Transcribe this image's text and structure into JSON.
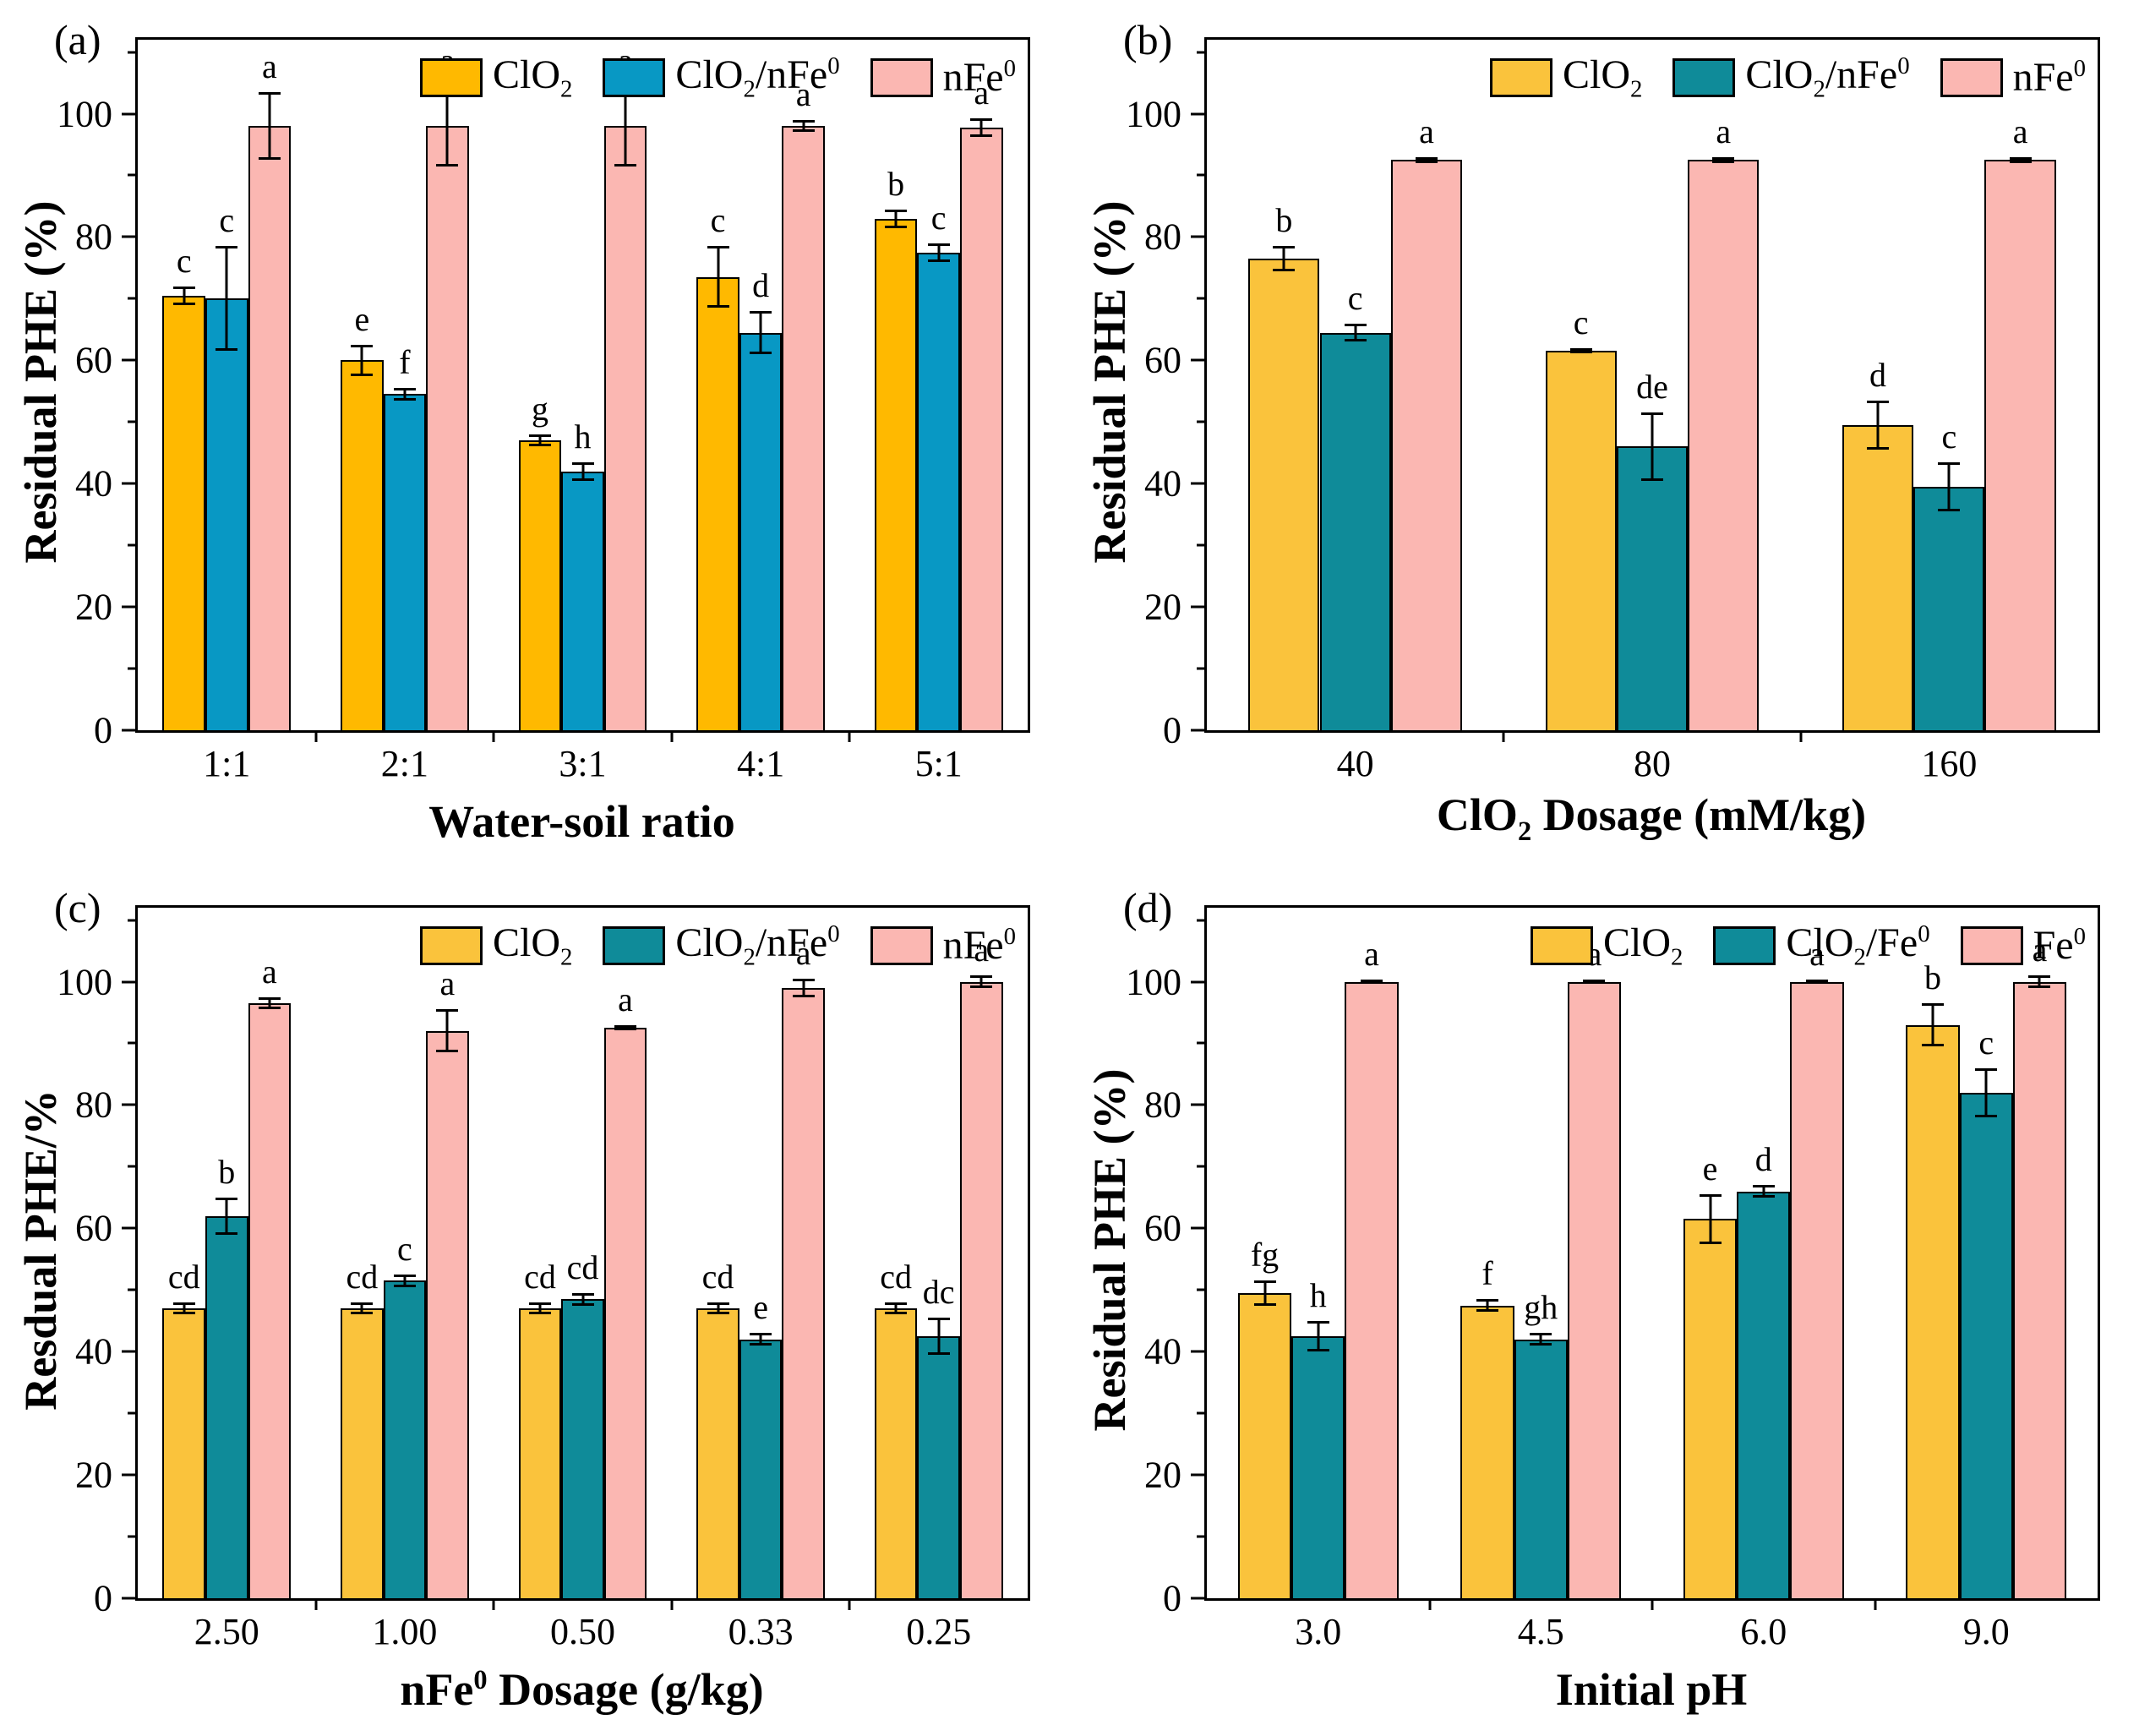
{
  "figure": {
    "background": "#ffffff"
  },
  "chart_data": [
    {
      "id": "a",
      "type": "bar",
      "panel_label": "(a)",
      "xlabel": "Water-soil ratio",
      "ylabel": "Residual PHE (%)",
      "categories": [
        "1:1",
        "2:1",
        "3:1",
        "4:1",
        "5:1"
      ],
      "yticks": [
        0,
        20,
        40,
        60,
        80,
        100
      ],
      "ylim": [
        0,
        112
      ],
      "grid": false,
      "legend_position": "top-right",
      "series": [
        {
          "name": "ClO_2",
          "color": "#FFB900",
          "values": [
            70.5,
            60,
            47,
            73.5,
            83
          ],
          "errors": [
            1.5,
            2.5,
            1,
            5,
            1.5
          ],
          "letters": [
            "c",
            "e",
            "g",
            "c",
            "b"
          ]
        },
        {
          "name": "ClO_2/nFe^0",
          "color": "#0898C4",
          "values": [
            70,
            54.5,
            42,
            64.5,
            77.5
          ],
          "errors": [
            8.5,
            1,
            1.5,
            3.5,
            1.5
          ],
          "letters": [
            "c",
            "f",
            "h",
            "d",
            "c"
          ]
        },
        {
          "name": "nFe^0",
          "color": "#FBB7B2",
          "values": [
            98,
            98,
            98,
            98,
            97.8
          ],
          "errors": [
            5.5,
            6.5,
            6.5,
            1,
            1.5
          ],
          "letters": [
            "a",
            "a",
            "a",
            "a",
            "a"
          ]
        }
      ]
    },
    {
      "id": "b",
      "type": "bar",
      "panel_label": "(b)",
      "xlabel": "ClO_2 Dosage (mM/kg)",
      "ylabel": "Residual PHE (%)",
      "categories": [
        "40",
        "80",
        "160"
      ],
      "yticks": [
        0,
        20,
        40,
        60,
        80,
        100
      ],
      "ylim": [
        0,
        112
      ],
      "grid": false,
      "legend_position": "top-right",
      "series": [
        {
          "name": "ClO_2",
          "color": "#FAC33C",
          "values": [
            76.5,
            61.5,
            49.5
          ],
          "errors": [
            2,
            0.4,
            4
          ],
          "letters": [
            "b",
            "c",
            "d"
          ]
        },
        {
          "name": "ClO_2/nFe^0",
          "color": "#0F8B99",
          "values": [
            64.5,
            46,
            39.5
          ],
          "errors": [
            1.5,
            5.5,
            4
          ],
          "letters": [
            "c",
            "de",
            "c"
          ]
        },
        {
          "name": "nFe^0",
          "color": "#FBB7B2",
          "values": [
            92.5,
            92.5,
            92.5
          ],
          "errors": [
            0.5,
            0.5,
            0.5
          ],
          "letters": [
            "a",
            "a",
            "a"
          ]
        }
      ]
    },
    {
      "id": "c",
      "type": "bar",
      "panel_label": "(c)",
      "xlabel": "nFe^0 Dosage (g/kg)",
      "ylabel": "Resdual PHE/%",
      "categories": [
        "2.50",
        "1.00",
        "0.50",
        "0.33",
        "0.25"
      ],
      "yticks": [
        0,
        20,
        40,
        60,
        80,
        100
      ],
      "ylim": [
        0,
        112
      ],
      "grid": false,
      "legend_position": "top-right",
      "series": [
        {
          "name": "ClO_2",
          "color": "#FAC33C",
          "values": [
            47,
            47,
            47,
            47,
            47
          ],
          "errors": [
            1,
            1,
            1,
            1,
            1
          ],
          "letters": [
            "cd",
            "cd",
            "cd",
            "cd",
            "cd"
          ]
        },
        {
          "name": "ClO_2/nFe^0",
          "color": "#0F8B99",
          "values": [
            62,
            51.5,
            48.5,
            42,
            42.5
          ],
          "errors": [
            3,
            1,
            1,
            1,
            3
          ],
          "letters": [
            "b",
            "c",
            "cd",
            "e",
            "dc"
          ]
        },
        {
          "name": "nFe^0",
          "color": "#FBB7B2",
          "values": [
            96.5,
            92,
            92.5,
            99,
            100
          ],
          "errors": [
            1,
            3.5,
            0.4,
            1.5,
            1
          ],
          "letters": [
            "a",
            "a",
            "a",
            "a",
            "a"
          ]
        }
      ]
    },
    {
      "id": "d",
      "type": "bar",
      "panel_label": "(d)",
      "xlabel": "Initial pH",
      "ylabel": "Residual PHE (%)",
      "categories": [
        "3.0",
        "4.5",
        "6.0",
        "9.0"
      ],
      "yticks": [
        0,
        20,
        40,
        60,
        80,
        100
      ],
      "ylim": [
        0,
        112
      ],
      "grid": false,
      "legend_position": "top-right",
      "series": [
        {
          "name": "ClO_2",
          "color": "#FAC33C",
          "values": [
            49.5,
            47.5,
            61.5,
            93
          ],
          "errors": [
            2,
            1,
            4,
            3.5
          ],
          "letters": [
            "fg",
            "f",
            "e",
            "b"
          ]
        },
        {
          "name": "ClO_2/Fe^0",
          "color": "#0F8B99",
          "values": [
            42.5,
            42,
            66,
            82
          ],
          "errors": [
            2.5,
            1,
            1,
            4
          ],
          "letters": [
            "h",
            "gh",
            "d",
            "c"
          ]
        },
        {
          "name": "Fe^0",
          "color": "#FBB7B2",
          "values": [
            100,
            100,
            100,
            100
          ],
          "errors": [
            0.4,
            0.4,
            0.4,
            1
          ],
          "letters": [
            "a",
            "a",
            "a",
            "a"
          ]
        }
      ]
    }
  ]
}
